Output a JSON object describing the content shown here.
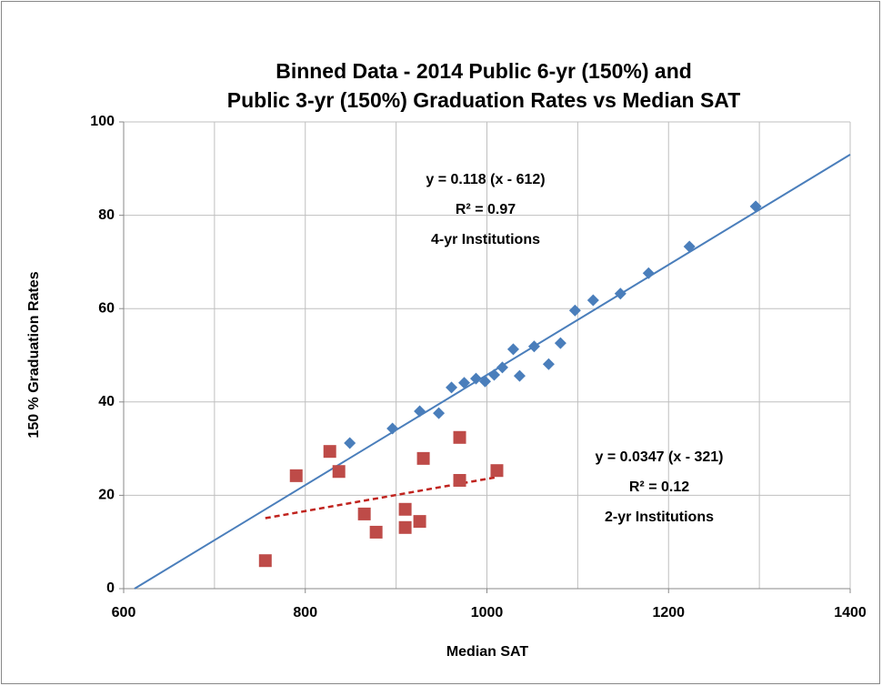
{
  "chart_data": {
    "type": "scatter",
    "title": [
      "Binned Data - 2014 Public 6-yr (150%) and",
      "Public 3-yr (150%) Graduation Rates vs Median SAT"
    ],
    "xlabel": "Median SAT",
    "ylabel": "150 % Graduation Rates",
    "xlim": [
      600,
      1400
    ],
    "xticks": [
      600,
      800,
      1000,
      1200,
      1400
    ],
    "x_minor_grid": [
      700,
      900,
      1100,
      1300
    ],
    "ylim": [
      0,
      100
    ],
    "yticks": [
      0,
      20,
      40,
      60,
      80,
      100
    ],
    "grid": true,
    "series": [
      {
        "name": "4-yr Institutions",
        "color": "#4a7ebb",
        "marker": "diamond",
        "x": [
          849,
          896,
          926,
          947,
          961,
          975,
          988,
          998,
          1008,
          1017,
          1029,
          1036,
          1052,
          1068,
          1081,
          1097,
          1117,
          1147,
          1178,
          1223,
          1296
        ],
        "values": [
          31.2,
          34.3,
          38.0,
          37.6,
          43.1,
          44.1,
          45.0,
          44.4,
          45.8,
          47.4,
          51.3,
          45.6,
          51.9,
          48.1,
          52.6,
          59.6,
          61.8,
          63.2,
          67.6,
          73.3,
          81.9
        ]
      },
      {
        "name": "2-yr Institutions",
        "color": "#be4b48",
        "marker": "square",
        "x": [
          756,
          790,
          827,
          837,
          865,
          878,
          910,
          910,
          926,
          930,
          970,
          970,
          1011
        ],
        "values": [
          6.0,
          24.2,
          29.4,
          25.1,
          16.0,
          12.1,
          17.0,
          13.1,
          14.4,
          27.9,
          32.4,
          23.2,
          25.3
        ]
      }
    ],
    "trendlines": [
      {
        "color": "#4a7ebb",
        "dashed": false,
        "x": [
          612,
          1400
        ],
        "values": [
          0,
          93.0
        ]
      },
      {
        "color": "#c0231e",
        "dashed": true,
        "x": [
          756,
          1011
        ],
        "values": [
          15.1,
          23.9
        ]
      }
    ],
    "annotations": [
      [
        "y = 0.118 (x - 612)",
        "R² = 0.97",
        "4-yr Institutions"
      ],
      [
        "y = 0.0347 (x - 321)",
        "R² = 0.12",
        "2-yr Institutions"
      ]
    ]
  }
}
